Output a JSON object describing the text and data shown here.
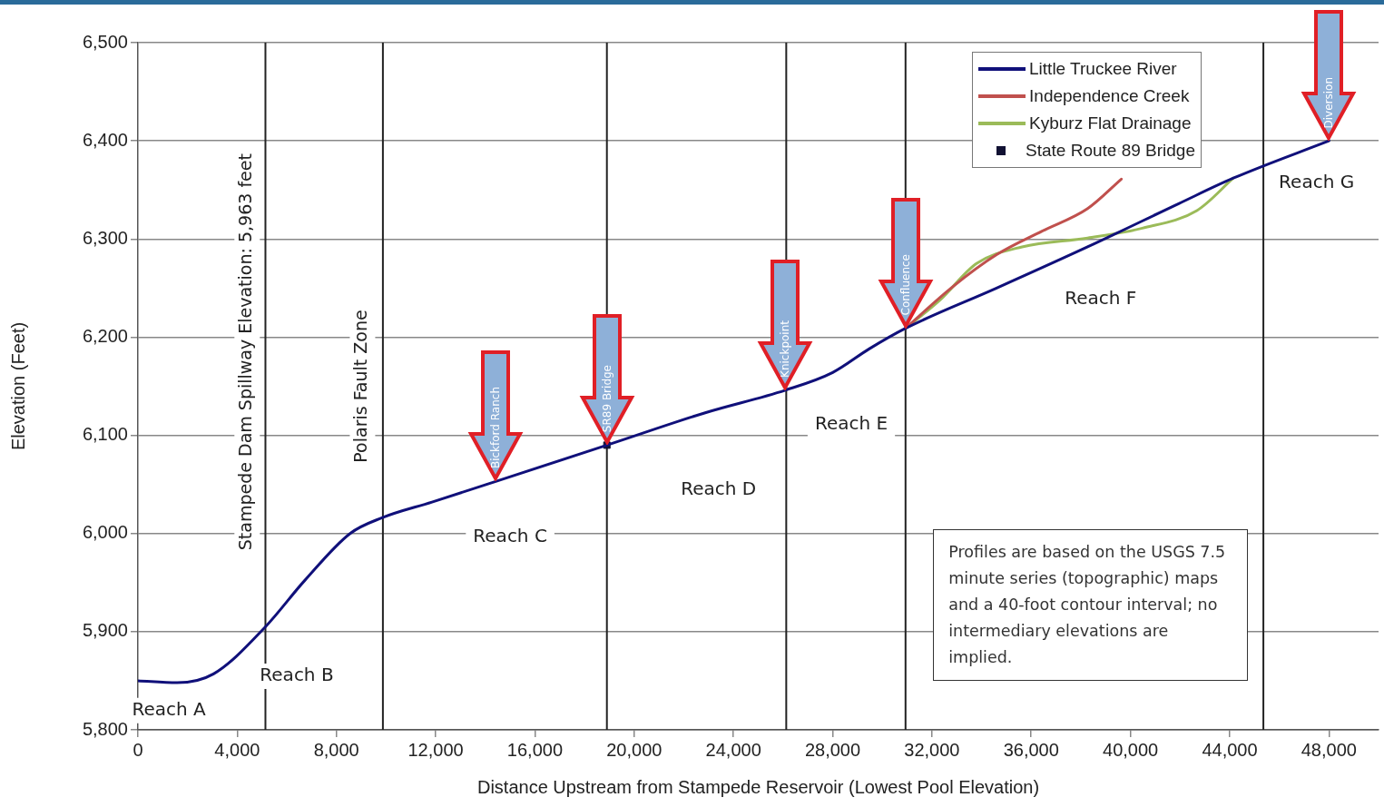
{
  "chart_data": {
    "type": "line",
    "xlabel": "Distance Upstream from Stampede Reservoir (Lowest Pool Elevation)",
    "ylabel": "Elevation (Feet)",
    "xlim": [
      0,
      50000
    ],
    "ylim": [
      5800,
      6500
    ],
    "xticks": [
      0,
      {
        "value": 4000,
        "label": "4,000"
      },
      {
        "value": 8000,
        "label": "8,000"
      },
      {
        "value": 12000,
        "label": "12,000"
      },
      {
        "value": 16000,
        "label": "16,000"
      },
      {
        "value": 20000,
        "label": "20,000"
      },
      {
        "value": 24000,
        "label": "24,000"
      },
      {
        "value": 28000,
        "label": "28,000"
      },
      {
        "value": 32000,
        "label": "32,000"
      },
      {
        "value": 36000,
        "label": "36,000"
      },
      {
        "value": 40000,
        "label": "40,000"
      },
      {
        "value": 44000,
        "label": "44,000"
      },
      {
        "value": 48000,
        "label": "48,000"
      }
    ],
    "yticks": [
      {
        "value": 5800,
        "label": "5,800"
      },
      {
        "value": 5900,
        "label": "5,900"
      },
      {
        "value": 6000,
        "label": "6,000"
      },
      {
        "value": 6100,
        "label": "6,100"
      },
      {
        "value": 6200,
        "label": "6,200"
      },
      {
        "value": 6300,
        "label": "6,300"
      },
      {
        "value": 6400,
        "label": "6,400"
      },
      {
        "value": 6500,
        "label": "6,500"
      }
    ],
    "grid": "y",
    "legend": "top right",
    "series": [
      {
        "name": "Little Truckee River",
        "color": "#10107a",
        "type": "line",
        "x": [
          0,
          1578,
          3046,
          5138,
          6716,
          8550,
          9835,
          11850,
          14420,
          18900,
          22862,
          26092,
          28000,
          29468,
          30936,
          34606,
          38275,
          41945,
          44147,
          48000
        ],
        "values": [
          5850,
          5848,
          5857,
          5905,
          5952,
          6000,
          6016,
          6032,
          6053,
          6090,
          6123,
          6146,
          6164,
          6188,
          6209,
          6250,
          6292,
          6336,
          6362,
          6400
        ]
      },
      {
        "name": "Independence Creek",
        "color": "#c0504d",
        "type": "line",
        "x": [
          30936,
          32771,
          34606,
          36440,
          38275,
          39633
        ],
        "values": [
          6209,
          6250,
          6284,
          6308,
          6331,
          6361
        ]
      },
      {
        "name": "Kyburz Flat Drainage",
        "color": "#9bbb59",
        "type": "line",
        "x": [
          30936,
          32330,
          33798,
          35633,
          38275,
          40477,
          42679,
          44147
        ],
        "values": [
          6209,
          6238,
          6275,
          6292,
          6301,
          6311,
          6329,
          6362
        ]
      },
      {
        "name": "State Route 89 Bridge",
        "color": "#111133",
        "type": "scatter",
        "marker": "square",
        "x": [
          18900
        ],
        "values": [
          6090
        ]
      }
    ],
    "ref_lines": [
      {
        "axis": "x",
        "value": 5138
      },
      {
        "axis": "x",
        "value": 9872
      },
      {
        "axis": "x",
        "value": 18900
      },
      {
        "axis": "x",
        "value": 26128
      },
      {
        "axis": "x",
        "value": 30936
      },
      {
        "axis": "x",
        "value": 45358
      }
    ],
    "annotations": [
      {
        "text": "Bickford Ranch",
        "x": 14420,
        "y": 6053
      },
      {
        "text": "SR89 Bridge",
        "x": 18900,
        "y": 6090
      },
      {
        "text": "Knickpoint",
        "x": 26092,
        "y": 6146
      },
      {
        "text": "Confluence",
        "x": 30936,
        "y": 6209
      },
      {
        "text": "Diversion",
        "x": 48000,
        "y": 6400
      },
      "Stampede Dam Spillway Elevation: 5,963 feet",
      "Polaris Fault Zone",
      "Reach A",
      "Reach B",
      "Reach C",
      "Reach D",
      "Reach E",
      "Reach F",
      "Reach G",
      "Profiles are based on the USGS 7.5 minute series (topographic) maps and a 40-foot contour interval; no intermediary elevations are implied."
    ]
  }
}
